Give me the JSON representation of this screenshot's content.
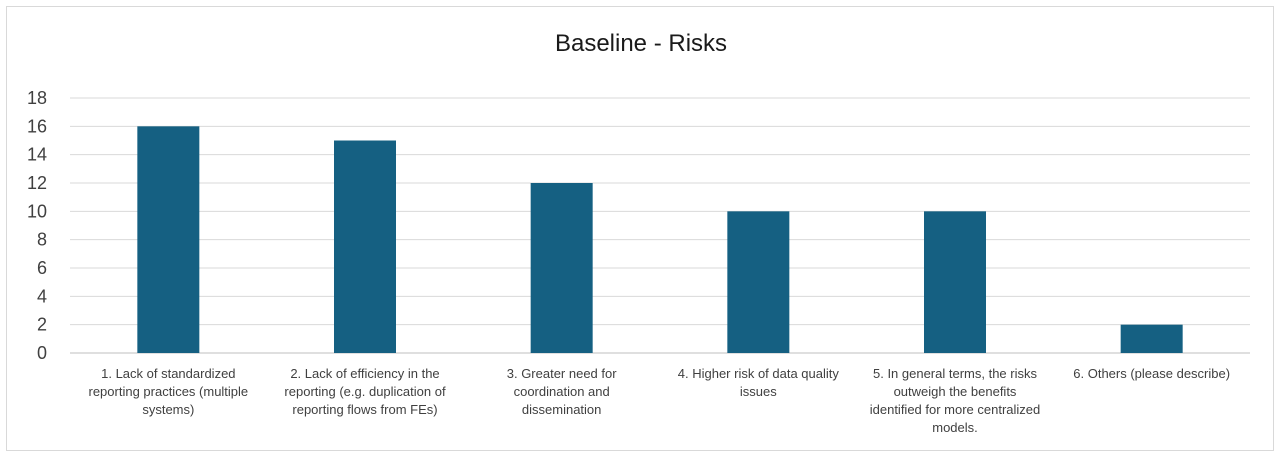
{
  "chart_data": {
    "type": "bar",
    "title": "Baseline - Risks",
    "xlabel": "",
    "ylabel": "",
    "ylim": [
      0,
      18
    ],
    "yticks": [
      0,
      2,
      4,
      6,
      8,
      10,
      12,
      14,
      16,
      18
    ],
    "grid": true,
    "legend": "none",
    "bar_color": "#156082",
    "categories": [
      "1. Lack of standardized reporting practices (multiple systems)",
      "2. Lack of efficiency in the reporting (e.g. duplication of reporting flows from FEs)",
      "3. Greater need for coordination and dissemination",
      "4. Higher risk of data quality issues",
      "5. In general terms, the risks outweigh the benefits identified for more centralized models.",
      "6. Others (please describe)"
    ],
    "category_lines": [
      [
        "1. Lack of standardized",
        "reporting practices (multiple",
        "systems)"
      ],
      [
        "2. Lack of efficiency in the",
        "reporting (e.g. duplication of",
        "reporting flows from FEs)"
      ],
      [
        "3. Greater need for",
        "coordination and",
        "dissemination"
      ],
      [
        "4. Higher risk of data quality",
        "issues"
      ],
      [
        "5. In general terms, the risks",
        "outweigh the benefits",
        "identified for more centralized",
        "models."
      ],
      [
        "6. Others (please describe)"
      ]
    ],
    "values": [
      16,
      15,
      12,
      10,
      10,
      2
    ]
  }
}
